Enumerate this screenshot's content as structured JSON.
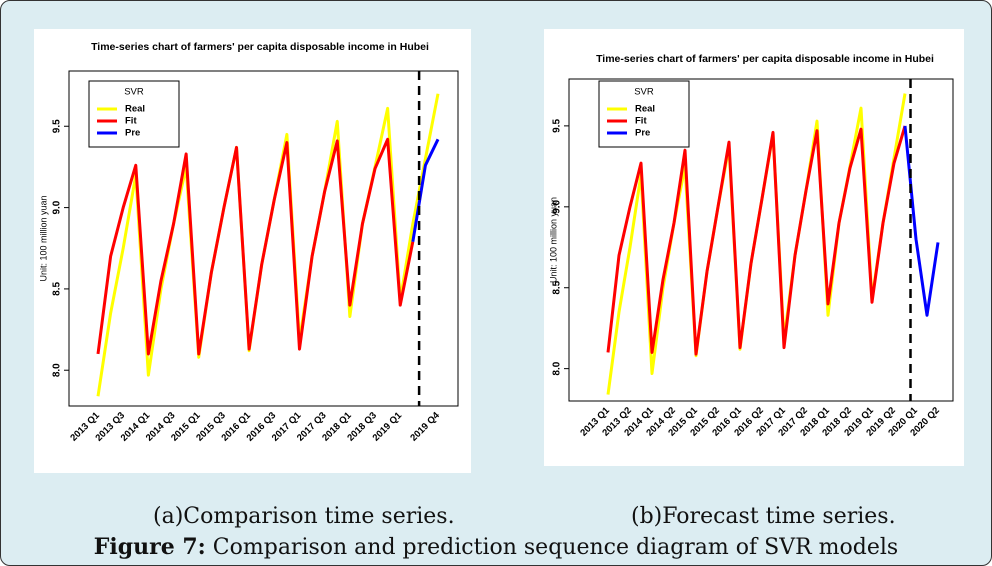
{
  "chart_data": [
    {
      "type": "line",
      "title": "Time-series chart of farmers' per capita disposable income in Hubei",
      "y_label": "Unit: 100 million yuan",
      "legend_title": "SVR",
      "categories": [
        "2013 Q1",
        null,
        "2013 Q3",
        null,
        "2014 Q1",
        null,
        "2014 Q3",
        null,
        "2015 Q1",
        null,
        "2015 Q3",
        null,
        "2016 Q1",
        null,
        "2016 Q3",
        null,
        "2017 Q1",
        null,
        "2017 Q3",
        null,
        "2018 Q1",
        null,
        "2018 Q3",
        null,
        "2019 Q1",
        null,
        null,
        "2019 Q4"
      ],
      "series": [
        {
          "name": "Real",
          "color": "#ffff00",
          "values": [
            7.84,
            8.35,
            8.75,
            9.2,
            7.97,
            8.5,
            8.9,
            9.25,
            8.08,
            8.6,
            9.0,
            9.37,
            8.12,
            8.65,
            9.05,
            9.45,
            8.18,
            8.7,
            9.1,
            9.53,
            8.33,
            8.9,
            9.25,
            9.61,
            8.43,
            8.9,
            9.3,
            9.7
          ]
        },
        {
          "name": "Fit",
          "color": "#ff0000",
          "values": [
            8.1,
            8.7,
            9.0,
            9.26,
            8.1,
            8.55,
            8.9,
            9.33,
            8.1,
            8.6,
            9.0,
            9.37,
            8.13,
            8.65,
            9.05,
            9.4,
            8.13,
            8.7,
            9.1,
            9.41,
            8.4,
            8.9,
            9.24,
            9.42,
            8.4,
            8.79,
            null,
            null
          ]
        },
        {
          "name": "Pre",
          "color": "#0000ff",
          "values": [
            null,
            null,
            null,
            null,
            null,
            null,
            null,
            null,
            null,
            null,
            null,
            null,
            null,
            null,
            null,
            null,
            null,
            null,
            null,
            null,
            null,
            null,
            null,
            null,
            null,
            8.79,
            9.26,
            9.42
          ]
        }
      ],
      "ylim": [
        7.78,
        9.84
      ],
      "yticks": [
        {
          "value": 8,
          "label": "8.0"
        },
        {
          "value": 8.5,
          "label": "8.5"
        },
        {
          "value": 9,
          "label": "9.0"
        },
        {
          "value": 9.5,
          "label": "9.5"
        }
      ]
    },
    {
      "type": "line",
      "title": "Time-series chart of farmers' per capita disposable income in Hubei",
      "y_label": "Unit: 100 million yuan",
      "legend_title": "SVR",
      "categories": [
        "2013 Q1",
        null,
        "2013 Q2",
        null,
        "2014 Q1",
        null,
        "2014 Q2",
        null,
        "2015 Q1",
        null,
        "2015 Q2",
        null,
        "2016 Q1",
        null,
        "2016 Q2",
        null,
        "2017 Q1",
        null,
        "2017 Q2",
        null,
        "2018 Q1",
        null,
        "2018 Q2",
        null,
        "2019 Q1",
        null,
        "2019 Q2",
        null,
        "2020 Q1",
        null,
        "2020 Q2"
      ],
      "series": [
        {
          "name": "Real",
          "color": "#ffff00",
          "values": [
            7.84,
            8.35,
            8.75,
            9.2,
            7.97,
            8.5,
            8.9,
            9.25,
            8.08,
            8.6,
            9.0,
            9.37,
            8.12,
            8.65,
            9.05,
            9.45,
            8.18,
            8.7,
            9.1,
            9.53,
            8.33,
            8.9,
            9.25,
            9.61,
            8.43,
            8.9,
            9.3,
            9.7,
            null,
            null,
            null
          ]
        },
        {
          "name": "Fit",
          "color": "#ff0000",
          "values": [
            8.1,
            8.7,
            9.0,
            9.27,
            8.1,
            8.55,
            8.9,
            9.35,
            8.09,
            8.6,
            9.0,
            9.4,
            8.13,
            8.65,
            9.05,
            9.46,
            8.13,
            8.7,
            9.1,
            9.47,
            8.4,
            8.9,
            9.24,
            9.48,
            8.41,
            8.9,
            9.27,
            9.5,
            null,
            null,
            null
          ]
        },
        {
          "name": "Pre",
          "color": "#0000ff",
          "values": [
            null,
            null,
            null,
            null,
            null,
            null,
            null,
            null,
            null,
            null,
            null,
            null,
            null,
            null,
            null,
            null,
            null,
            null,
            null,
            null,
            null,
            null,
            null,
            null,
            null,
            null,
            null,
            9.5,
            8.8,
            8.33,
            8.78
          ]
        }
      ],
      "ylim": [
        7.8,
        9.79
      ],
      "yticks": [
        {
          "value": 8,
          "label": "8.0"
        },
        {
          "value": 8.5,
          "label": "8.5"
        },
        {
          "value": 9,
          "label": "9.0"
        },
        {
          "value": 9.5,
          "label": "9.5"
        }
      ]
    }
  ],
  "captions": [
    "(a)Comparison time series.",
    "(b)Forecast time series."
  ],
  "figure_caption": {
    "label": "Figure 7:",
    "text": "Comparison and prediction sequence diagram of SVR models"
  }
}
